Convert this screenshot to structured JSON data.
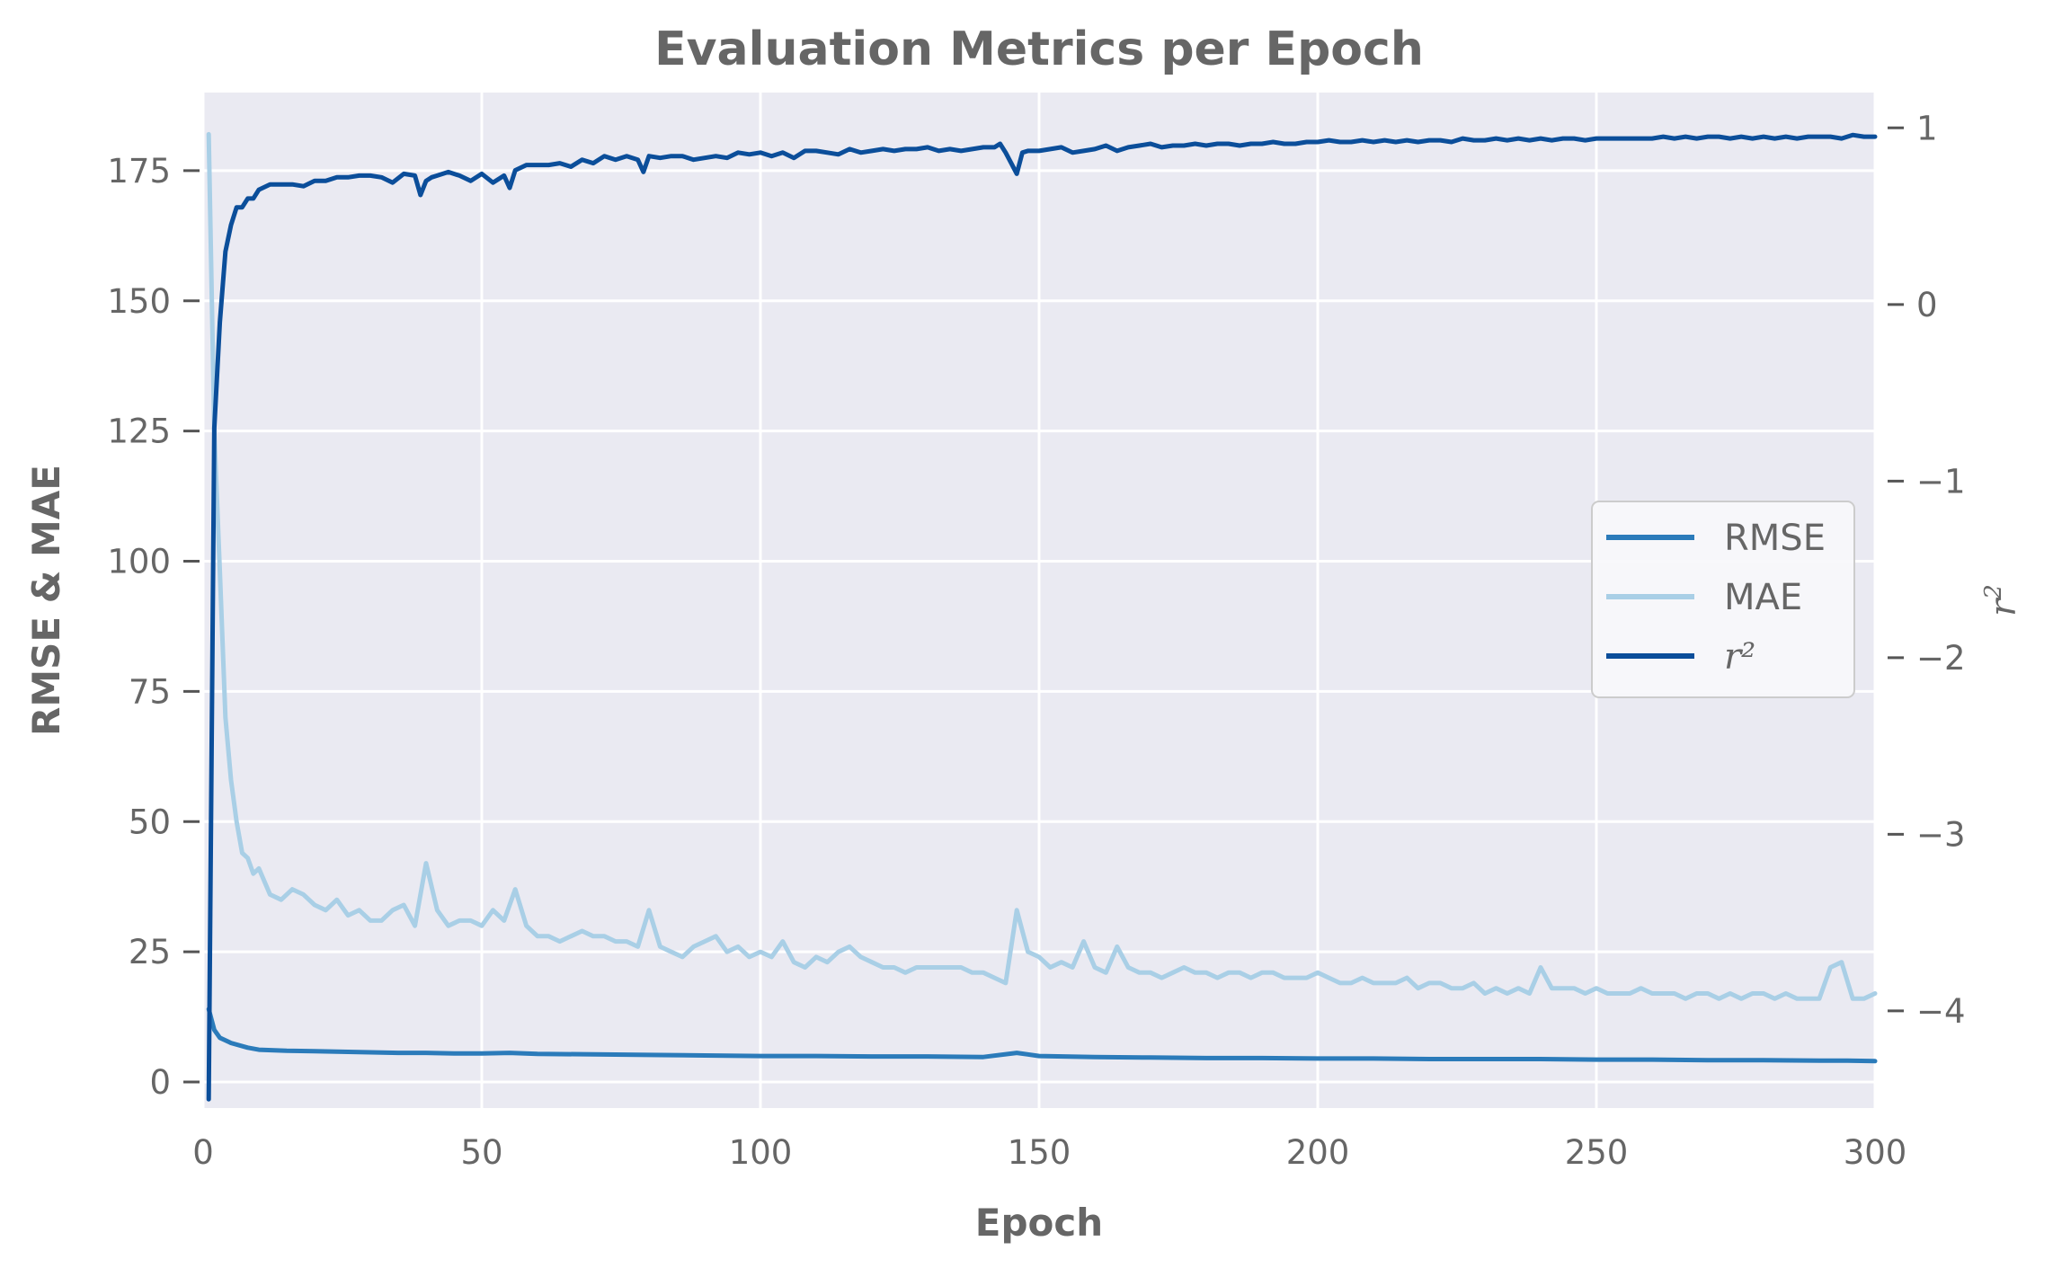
{
  "chart_data": {
    "type": "line",
    "title": "Evaluation Metrics per Epoch",
    "xlabel": "Epoch",
    "ylabel_left": "RMSE & MAE",
    "ylabel_right_base": "r",
    "ylabel_right_sup": "2",
    "xlim": [
      0,
      300
    ],
    "ylim_left": [
      -5,
      190
    ],
    "ylim_right": [
      -4.55,
      1.2
    ],
    "x_ticks": [
      0,
      50,
      100,
      150,
      200,
      250,
      300
    ],
    "y_ticks_left": [
      0,
      25,
      50,
      75,
      100,
      125,
      150,
      175
    ],
    "y_ticks_right": [
      1,
      0,
      -1,
      -2,
      -3,
      -4
    ],
    "y_tick_labels_right": [
      "1",
      "0",
      "−1",
      "−2",
      "−3",
      "−4"
    ],
    "grid": true,
    "legend_position": "center-right",
    "colors": {
      "background": "#eaeaf2",
      "grid": "#ffffff",
      "rmse": "#2b7bba",
      "mae": "#a9cfe6",
      "r2": "#0b4e9a",
      "text": "#666666"
    },
    "series": [
      {
        "name": "RMSE",
        "axis": "left",
        "x": [
          1,
          2,
          3,
          5,
          8,
          10,
          15,
          20,
          25,
          30,
          35,
          40,
          45,
          50,
          55,
          60,
          70,
          80,
          90,
          100,
          110,
          120,
          130,
          140,
          146,
          150,
          160,
          170,
          180,
          190,
          200,
          210,
          220,
          230,
          240,
          250,
          260,
          270,
          280,
          290,
          295,
          300
        ],
        "y": [
          14,
          10,
          8.5,
          7.5,
          6.6,
          6.2,
          6.0,
          5.9,
          5.8,
          5.7,
          5.6,
          5.6,
          5.5,
          5.5,
          5.6,
          5.4,
          5.3,
          5.2,
          5.1,
          5.0,
          5.0,
          4.9,
          4.9,
          4.8,
          5.6,
          5.0,
          4.8,
          4.7,
          4.6,
          4.6,
          4.5,
          4.5,
          4.4,
          4.4,
          4.4,
          4.3,
          4.3,
          4.2,
          4.2,
          4.1,
          4.1,
          4.0
        ]
      },
      {
        "name": "MAE",
        "axis": "left",
        "x": [
          1,
          2,
          3,
          4,
          5,
          6,
          7,
          8,
          9,
          10,
          12,
          14,
          16,
          18,
          20,
          22,
          24,
          26,
          28,
          30,
          32,
          34,
          36,
          38,
          40,
          42,
          44,
          46,
          48,
          50,
          52,
          54,
          56,
          58,
          60,
          62,
          64,
          66,
          68,
          70,
          72,
          74,
          76,
          78,
          80,
          82,
          84,
          86,
          88,
          90,
          92,
          94,
          96,
          98,
          100,
          102,
          104,
          106,
          108,
          110,
          112,
          114,
          116,
          118,
          120,
          122,
          124,
          126,
          128,
          130,
          132,
          134,
          136,
          138,
          140,
          142,
          144,
          146,
          148,
          150,
          152,
          154,
          156,
          158,
          160,
          162,
          164,
          166,
          168,
          170,
          172,
          174,
          176,
          178,
          180,
          182,
          184,
          186,
          188,
          190,
          192,
          194,
          196,
          198,
          200,
          202,
          204,
          206,
          208,
          210,
          212,
          214,
          216,
          218,
          220,
          222,
          224,
          226,
          228,
          230,
          232,
          234,
          236,
          238,
          240,
          242,
          244,
          246,
          248,
          250,
          252,
          254,
          256,
          258,
          260,
          262,
          264,
          266,
          268,
          270,
          272,
          274,
          276,
          278,
          280,
          282,
          284,
          286,
          288,
          290,
          292,
          294,
          296,
          298,
          300
        ],
        "y": [
          182,
          125,
          98,
          70,
          58,
          50,
          44,
          43,
          40,
          41,
          36,
          35,
          37,
          36,
          34,
          33,
          35,
          32,
          33,
          31,
          31,
          33,
          34,
          30,
          42,
          33,
          30,
          31,
          31,
          30,
          33,
          31,
          37,
          30,
          28,
          28,
          27,
          28,
          29,
          28,
          28,
          27,
          27,
          26,
          33,
          26,
          25,
          24,
          26,
          27,
          28,
          25,
          26,
          24,
          25,
          24,
          27,
          23,
          22,
          24,
          23,
          25,
          26,
          24,
          23,
          22,
          22,
          21,
          22,
          22,
          22,
          22,
          22,
          21,
          21,
          20,
          19,
          33,
          25,
          24,
          22,
          23,
          22,
          27,
          22,
          21,
          26,
          22,
          21,
          21,
          20,
          21,
          22,
          21,
          21,
          20,
          21,
          21,
          20,
          21,
          21,
          20,
          20,
          20,
          21,
          20,
          19,
          19,
          20,
          19,
          19,
          19,
          20,
          18,
          19,
          19,
          18,
          18,
          19,
          17,
          18,
          17,
          18,
          17,
          22,
          18,
          18,
          18,
          17,
          18,
          17,
          17,
          17,
          18,
          17,
          17,
          17,
          16,
          17,
          17,
          16,
          17,
          16,
          17,
          17,
          16,
          17,
          16,
          16,
          16,
          22,
          23,
          16,
          16,
          17
        ]
      },
      {
        "name": "r²",
        "axis": "right",
        "x": [
          1,
          2,
          3,
          4,
          5,
          6,
          7,
          8,
          9,
          10,
          12,
          14,
          16,
          18,
          20,
          22,
          24,
          26,
          28,
          30,
          32,
          34,
          36,
          38,
          39,
          40,
          41,
          42,
          44,
          46,
          48,
          50,
          52,
          54,
          55,
          56,
          58,
          60,
          62,
          64,
          66,
          68,
          70,
          72,
          74,
          76,
          78,
          79,
          80,
          82,
          84,
          86,
          88,
          90,
          92,
          94,
          96,
          98,
          100,
          102,
          104,
          106,
          108,
          110,
          112,
          114,
          116,
          118,
          120,
          122,
          124,
          126,
          128,
          130,
          132,
          134,
          136,
          138,
          140,
          142,
          143,
          144,
          145,
          146,
          147,
          148,
          150,
          152,
          154,
          156,
          158,
          160,
          162,
          164,
          166,
          168,
          170,
          172,
          174,
          176,
          178,
          180,
          182,
          184,
          186,
          188,
          190,
          192,
          194,
          196,
          198,
          200,
          202,
          204,
          206,
          208,
          210,
          212,
          214,
          216,
          218,
          220,
          222,
          224,
          226,
          228,
          230,
          232,
          234,
          236,
          238,
          240,
          242,
          244,
          246,
          248,
          250,
          252,
          254,
          256,
          258,
          260,
          262,
          264,
          266,
          268,
          270,
          272,
          274,
          276,
          278,
          280,
          282,
          284,
          286,
          288,
          290,
          292,
          294,
          296,
          298,
          300
        ],
        "y": [
          -4.5,
          -0.7,
          -0.1,
          0.3,
          0.45,
          0.55,
          0.55,
          0.6,
          0.6,
          0.65,
          0.68,
          0.68,
          0.68,
          0.67,
          0.7,
          0.7,
          0.72,
          0.72,
          0.73,
          0.73,
          0.72,
          0.69,
          0.74,
          0.73,
          0.62,
          0.7,
          0.72,
          0.73,
          0.75,
          0.73,
          0.7,
          0.74,
          0.69,
          0.73,
          0.66,
          0.76,
          0.79,
          0.79,
          0.79,
          0.8,
          0.78,
          0.82,
          0.8,
          0.84,
          0.82,
          0.84,
          0.82,
          0.75,
          0.84,
          0.83,
          0.84,
          0.84,
          0.82,
          0.83,
          0.84,
          0.83,
          0.86,
          0.85,
          0.86,
          0.84,
          0.86,
          0.83,
          0.87,
          0.87,
          0.86,
          0.85,
          0.88,
          0.86,
          0.87,
          0.88,
          0.87,
          0.88,
          0.88,
          0.89,
          0.87,
          0.88,
          0.87,
          0.88,
          0.89,
          0.89,
          0.91,
          0.86,
          0.8,
          0.74,
          0.86,
          0.87,
          0.87,
          0.88,
          0.89,
          0.86,
          0.87,
          0.88,
          0.9,
          0.87,
          0.89,
          0.9,
          0.91,
          0.89,
          0.9,
          0.9,
          0.91,
          0.9,
          0.91,
          0.91,
          0.9,
          0.91,
          0.91,
          0.92,
          0.91,
          0.91,
          0.92,
          0.92,
          0.93,
          0.92,
          0.92,
          0.93,
          0.92,
          0.93,
          0.92,
          0.93,
          0.92,
          0.93,
          0.93,
          0.92,
          0.94,
          0.93,
          0.93,
          0.94,
          0.93,
          0.94,
          0.93,
          0.94,
          0.93,
          0.94,
          0.94,
          0.93,
          0.94,
          0.94,
          0.94,
          0.94,
          0.94,
          0.94,
          0.95,
          0.94,
          0.95,
          0.94,
          0.95,
          0.95,
          0.94,
          0.95,
          0.94,
          0.95,
          0.94,
          0.95,
          0.94,
          0.95,
          0.95,
          0.95,
          0.94,
          0.96,
          0.95,
          0.95
        ]
      }
    ]
  }
}
